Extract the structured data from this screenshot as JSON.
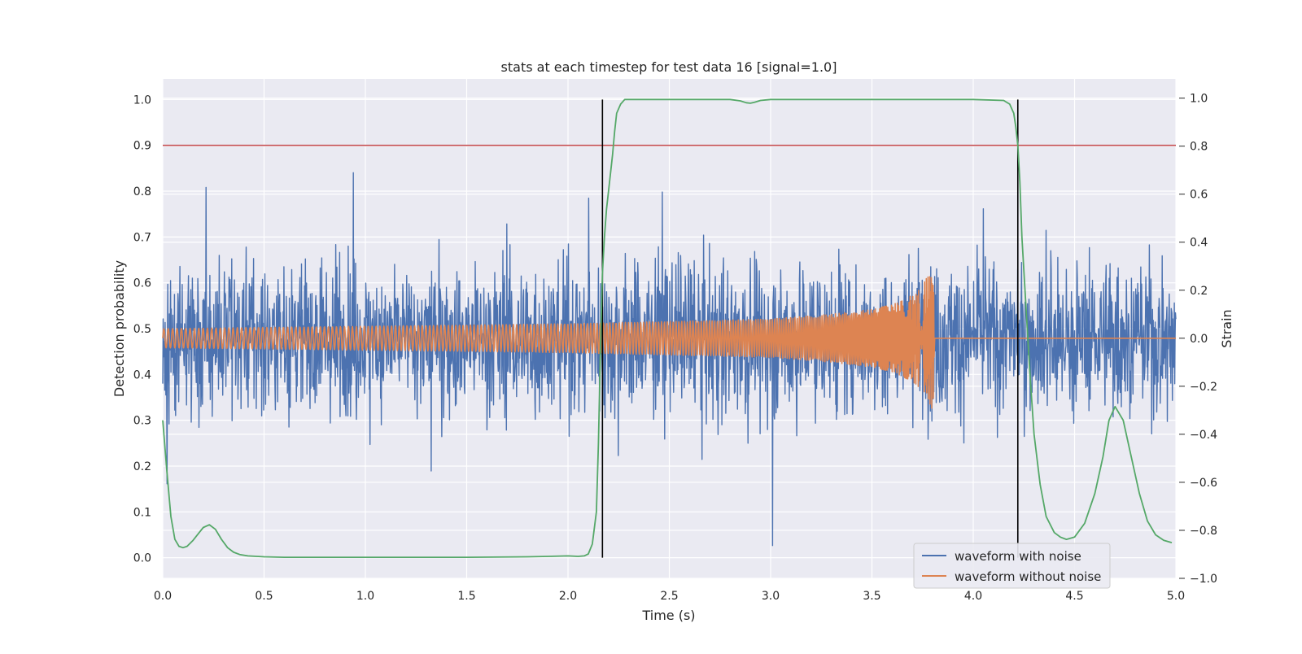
{
  "chart_data": {
    "type": "line",
    "title": "stats at each timestep for test data 16 [signal=1.0]",
    "xlabel": "Time (s)",
    "ylabel": "Detection probability",
    "y2label": "Strain",
    "xlim": [
      0.0,
      5.0
    ],
    "ylim": [
      -0.045,
      1.045
    ],
    "y2lim": [
      -1.0,
      1.08
    ],
    "xticks": [
      "0.0",
      "0.5",
      "1.0",
      "1.5",
      "2.0",
      "2.5",
      "3.0",
      "3.5",
      "4.0",
      "4.5",
      "5.0"
    ],
    "yticks": [
      "0.0",
      "0.1",
      "0.2",
      "0.3",
      "0.4",
      "0.5",
      "0.6",
      "0.7",
      "0.8",
      "0.9",
      "1.0"
    ],
    "y2ticks": [
      "−1.0",
      "−0.8",
      "−0.6",
      "−0.4",
      "−0.2",
      "0.0",
      "0.2",
      "0.4",
      "0.6",
      "0.8",
      "1.0"
    ],
    "grid": true,
    "legend_position": "bottom-right",
    "colors": {
      "noisy": "#4c72b0",
      "clean": "#dd8452",
      "probability": "#55a868",
      "threshold": "#c44e52",
      "markers": "#000000",
      "background": "#eaeaf2",
      "grid": "#ffffff"
    },
    "threshold": 0.9,
    "vertical_markers": [
      2.17,
      4.22
    ],
    "probability": {
      "x": [
        0.0,
        0.02,
        0.04,
        0.06,
        0.08,
        0.1,
        0.12,
        0.15,
        0.18,
        0.2,
        0.23,
        0.26,
        0.29,
        0.32,
        0.35,
        0.38,
        0.42,
        0.5,
        0.6,
        0.8,
        1.0,
        1.5,
        1.8,
        1.9,
        2.0,
        2.05,
        2.08,
        2.1,
        2.12,
        2.14,
        2.15,
        2.16,
        2.17,
        2.18,
        2.19,
        2.2,
        2.21,
        2.22,
        2.23,
        2.24,
        2.26,
        2.28,
        2.3,
        2.5,
        2.7,
        2.8,
        2.85,
        2.88,
        2.9,
        2.92,
        2.95,
        3.0,
        3.5,
        4.0,
        4.15,
        4.18,
        4.2,
        4.21,
        4.22,
        4.23,
        4.24,
        4.26,
        4.28,
        4.3,
        4.33,
        4.36,
        4.4,
        4.43,
        4.46,
        4.5,
        4.55,
        4.6,
        4.64,
        4.67,
        4.7,
        4.74,
        4.78,
        4.82,
        4.86,
        4.9,
        4.94,
        4.98
      ],
      "y": [
        0.3,
        0.19,
        0.09,
        0.04,
        0.025,
        0.022,
        0.025,
        0.038,
        0.055,
        0.066,
        0.072,
        0.062,
        0.04,
        0.022,
        0.012,
        0.007,
        0.004,
        0.002,
        0.001,
        0.001,
        0.001,
        0.001,
        0.002,
        0.003,
        0.004,
        0.003,
        0.004,
        0.008,
        0.03,
        0.1,
        0.25,
        0.45,
        0.62,
        0.7,
        0.76,
        0.8,
        0.84,
        0.88,
        0.93,
        0.97,
        0.99,
        1.0,
        1.0,
        1.0,
        1.0,
        1.0,
        0.997,
        0.993,
        0.992,
        0.994,
        0.998,
        1.0,
        1.0,
        1.0,
        0.998,
        0.99,
        0.97,
        0.94,
        0.9,
        0.82,
        0.7,
        0.55,
        0.4,
        0.27,
        0.16,
        0.09,
        0.055,
        0.045,
        0.04,
        0.045,
        0.075,
        0.14,
        0.22,
        0.3,
        0.33,
        0.3,
        0.22,
        0.14,
        0.08,
        0.05,
        0.038,
        0.033
      ]
    },
    "series": [
      {
        "name": "waveform with noise"
      },
      {
        "name": "waveform without noise"
      }
    ],
    "noise_envelope": {
      "x": [
        0.0,
        0.5,
        1.0,
        1.5,
        2.0,
        2.5,
        3.0,
        3.5,
        4.0,
        4.5,
        5.0
      ],
      "y": [
        0.58,
        0.6,
        0.62,
        0.61,
        0.63,
        0.64,
        0.66,
        0.63,
        0.62,
        0.6,
        0.62
      ]
    },
    "clean_waveform": {
      "x": [
        0.0,
        0.5,
        1.0,
        1.5,
        2.0,
        2.5,
        3.0,
        3.3,
        3.5,
        3.6,
        3.7,
        3.75,
        3.78,
        3.8,
        3.82,
        5.0
      ],
      "amplitude": [
        0.04,
        0.045,
        0.05,
        0.055,
        0.06,
        0.07,
        0.08,
        0.1,
        0.12,
        0.14,
        0.18,
        0.22,
        0.27,
        0.3,
        0.0,
        0.0
      ]
    }
  }
}
